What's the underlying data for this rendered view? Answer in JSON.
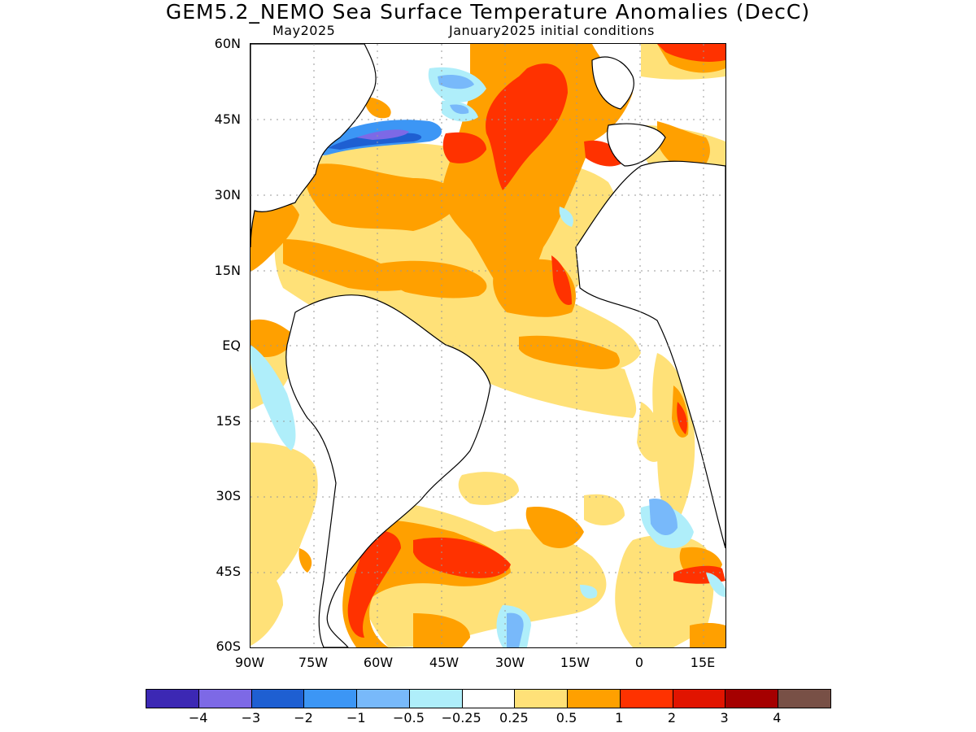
{
  "title": "GEM5.2_NEMO Sea Surface Temperature Anomalies (DecC)",
  "subtitle_left": "May2025",
  "subtitle_right": "January2025 initial conditions",
  "lat_labels": [
    "60N",
    "45N",
    "30N",
    "15N",
    "EQ",
    "15S",
    "30S",
    "45S",
    "60S"
  ],
  "lon_labels": [
    "90W",
    "75W",
    "60W",
    "45W",
    "30W",
    "15W",
    "0",
    "15E"
  ],
  "colorbar": {
    "colors": [
      "#3c28b4",
      "#7d69e6",
      "#1e5fd2",
      "#3c96f5",
      "#78b9fa",
      "#afeefa",
      "#ffffff",
      "#ffe178",
      "#ffa000",
      "#ff3200",
      "#e11400",
      "#a50000",
      "#785046"
    ],
    "labels": [
      "−4",
      "−3",
      "−2",
      "−1",
      "−0.5",
      "−0.25",
      "0.25",
      "0.5",
      "1",
      "2",
      "3",
      "4"
    ]
  }
}
